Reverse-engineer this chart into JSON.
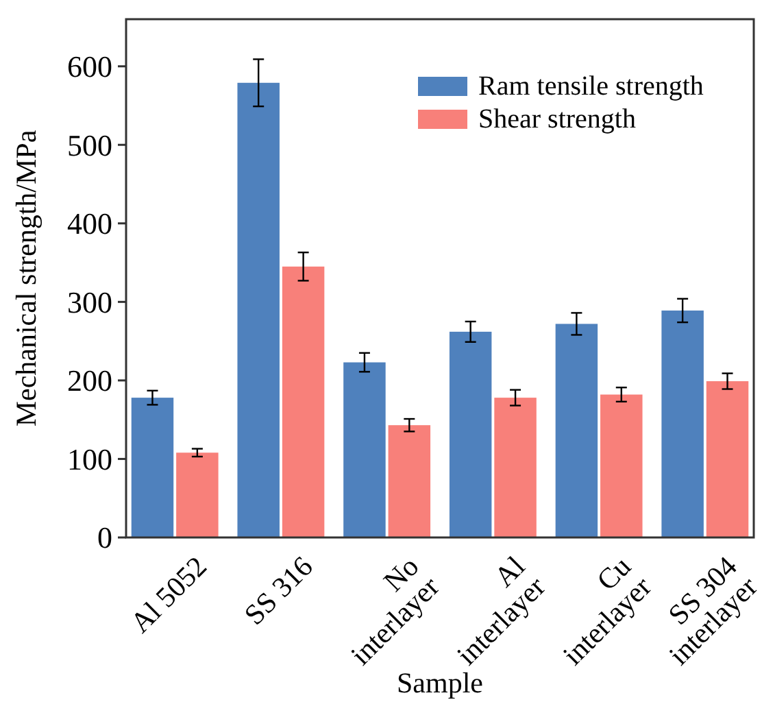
{
  "chart_data": {
    "type": "bar",
    "xlabel": "Sample",
    "ylabel": "Mechanical strength/MPa",
    "categories": [
      "Al 5052",
      "SS 316",
      "No\ninterlayer",
      "Al\ninterlayer",
      "Cu\ninterlayer",
      "SS 304\ninterlayer"
    ],
    "series": [
      {
        "name": "Ram tensile strength",
        "color": "#4f81bd",
        "values": [
          178,
          579,
          223,
          262,
          272,
          289
        ],
        "errors": [
          9,
          30,
          12,
          13,
          14,
          15
        ]
      },
      {
        "name": "Shear strength",
        "color": "#f8807a",
        "values": [
          108,
          345,
          143,
          178,
          182,
          199
        ],
        "errors": [
          5,
          18,
          8,
          10,
          9,
          10
        ]
      }
    ],
    "ylim": [
      0,
      660
    ],
    "yticks": [
      0,
      100,
      200,
      300,
      400,
      500,
      600
    ],
    "legend": "top right"
  }
}
